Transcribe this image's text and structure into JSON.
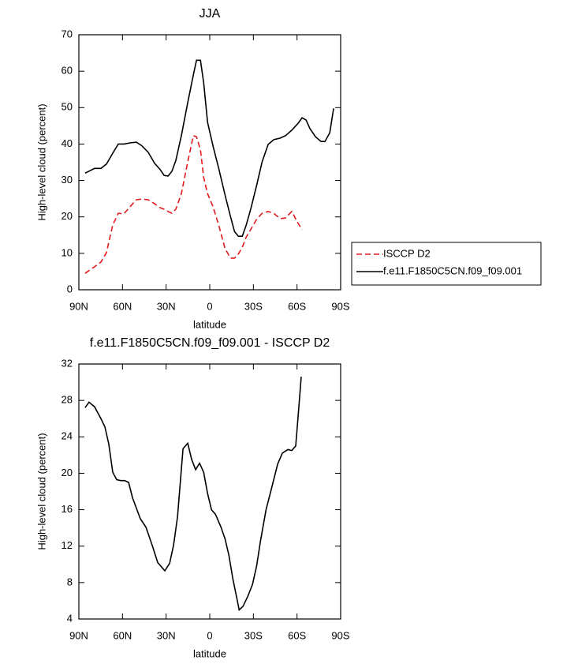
{
  "chart_data": [
    {
      "type": "line",
      "title": "JJA",
      "x_label": "latitude",
      "y_label": "High-level cloud (percent)",
      "xlim": [
        90,
        -90
      ],
      "xticks": [
        {
          "value": 90,
          "label": "90N"
        },
        {
          "value": 60,
          "label": "60N"
        },
        {
          "value": 30,
          "label": "30N"
        },
        0,
        {
          "value": -30,
          "label": "30S"
        },
        {
          "value": -60,
          "label": "60S"
        },
        {
          "value": -90,
          "label": "90S"
        }
      ],
      "ylim": [
        0,
        70
      ],
      "yticks": [
        0,
        10,
        20,
        30,
        40,
        50,
        60,
        70
      ],
      "legend": "right",
      "x": [
        85.7,
        79.2,
        74.8,
        71.0,
        66.7,
        62.9,
        59.1,
        54.8,
        50.4,
        46.6,
        42.3,
        37.9,
        34.1,
        31.4,
        28.7,
        26.0,
        23.3,
        19.5,
        15.1,
        11.3,
        9.1,
        6.4,
        4.2,
        1.5,
        -2.3,
        -6.1,
        -10.5,
        -14.3,
        -17.0,
        -19.7,
        -22.4,
        -25.1,
        -28.4,
        -32.2,
        -36.0,
        -40.2,
        -44.0,
        -48.3,
        -52.1,
        -56.4,
        -60.8,
        -63.5,
        -66.2,
        -68.9,
        -72.7,
        -76.5,
        -79.2,
        -82.5,
        -85.2
      ],
      "series": [
        {
          "name": "ISCCP D2",
          "color": "#e31a1c",
          "linestyle": "dashed",
          "values": [
            4.5,
            6.3,
            7.6,
            10.2,
            17.8,
            21,
            20.8,
            22.8,
            24.7,
            24.9,
            24.7,
            23.6,
            22.5,
            22.1,
            21.5,
            21,
            22.1,
            26.4,
            35.1,
            42.3,
            42,
            38.4,
            30.8,
            26.4,
            22.8,
            17.8,
            11.3,
            8.7,
            8.7,
            9.8,
            11.7,
            14.5,
            16.7,
            19.3,
            21,
            21.5,
            21,
            19.5,
            19.7,
            21.5,
            18.2,
            16.5,
            null,
            null,
            null,
            null,
            null,
            null,
            null
          ]
        },
        {
          "name": "f.e11.F1850C5CN.f09_f09.001",
          "color": "#000000",
          "linestyle": "solid",
          "values": [
            32,
            33.3,
            33.3,
            34.5,
            37.5,
            40,
            40,
            40.3,
            40.5,
            39.5,
            37.7,
            34.7,
            33,
            31.4,
            31.2,
            32.5,
            35.5,
            42.3,
            51.4,
            59,
            63,
            63,
            56.8,
            46,
            39.4,
            33.4,
            26,
            20,
            16,
            14.7,
            14.7,
            17.8,
            22.5,
            28.6,
            35.1,
            39.9,
            41.2,
            41.6,
            42.3,
            43.8,
            45.7,
            47.2,
            46.6,
            44.2,
            42,
            40.7,
            40.7,
            43.1,
            49.8
          ]
        }
      ]
    },
    {
      "type": "line",
      "title": "f.e11.F1850C5CN.f09_f09.001 - ISCCP D2",
      "x_label": "latitude",
      "y_label": "High-level cloud (percent)",
      "xlim": [
        90,
        -90
      ],
      "xticks": [
        {
          "value": 90,
          "label": "90N"
        },
        {
          "value": 60,
          "label": "60N"
        },
        {
          "value": 30,
          "label": "30N"
        },
        0,
        {
          "value": -30,
          "label": "30S"
        },
        {
          "value": -60,
          "label": "60S"
        },
        {
          "value": -90,
          "label": "90S"
        }
      ],
      "ylim": [
        4,
        32
      ],
      "yticks": [
        4,
        8,
        12,
        16,
        20,
        24,
        28,
        32
      ],
      "x": [
        85.7,
        83.0,
        79.2,
        74.8,
        72.1,
        69.4,
        66.7,
        64.0,
        61.3,
        58.5,
        55.8,
        53.1,
        47.7,
        43.9,
        39.6,
        35.8,
        33.1,
        30.9,
        27.6,
        24.9,
        22.2,
        18.4,
        15.1,
        12.4,
        9.7,
        7.0,
        4.2,
        1.5,
        -1.2,
        -3.9,
        -7.7,
        -10.5,
        -13.2,
        -15.9,
        -18.6,
        -20.2,
        -22.9,
        -26.2,
        -29.4,
        -32.2,
        -34.9,
        -38.7,
        -42.9,
        -46.7,
        -49.9,
        -53.7,
        -56.4,
        -59.1,
        -60.8,
        -62.9
      ],
      "series": [
        {
          "color": "#000000",
          "linestyle": "solid",
          "values": [
            27.2,
            27.8,
            27.3,
            26.0,
            25.1,
            23.2,
            20.1,
            19.3,
            19.2,
            19.2,
            19.0,
            17.3,
            15.0,
            14.1,
            12.1,
            10.2,
            9.7,
            9.3,
            10.1,
            12.1,
            15.2,
            22.7,
            23.3,
            21.5,
            20.4,
            21.1,
            20.1,
            17.8,
            16.0,
            15.5,
            14.1,
            12.8,
            11.0,
            8.4,
            6.3,
            5.0,
            5.4,
            6.5,
            7.8,
            9.8,
            12.6,
            16.0,
            18.6,
            21.0,
            22.2,
            22.6,
            22.5,
            23.0,
            26.3,
            30.6
          ]
        }
      ]
    }
  ]
}
